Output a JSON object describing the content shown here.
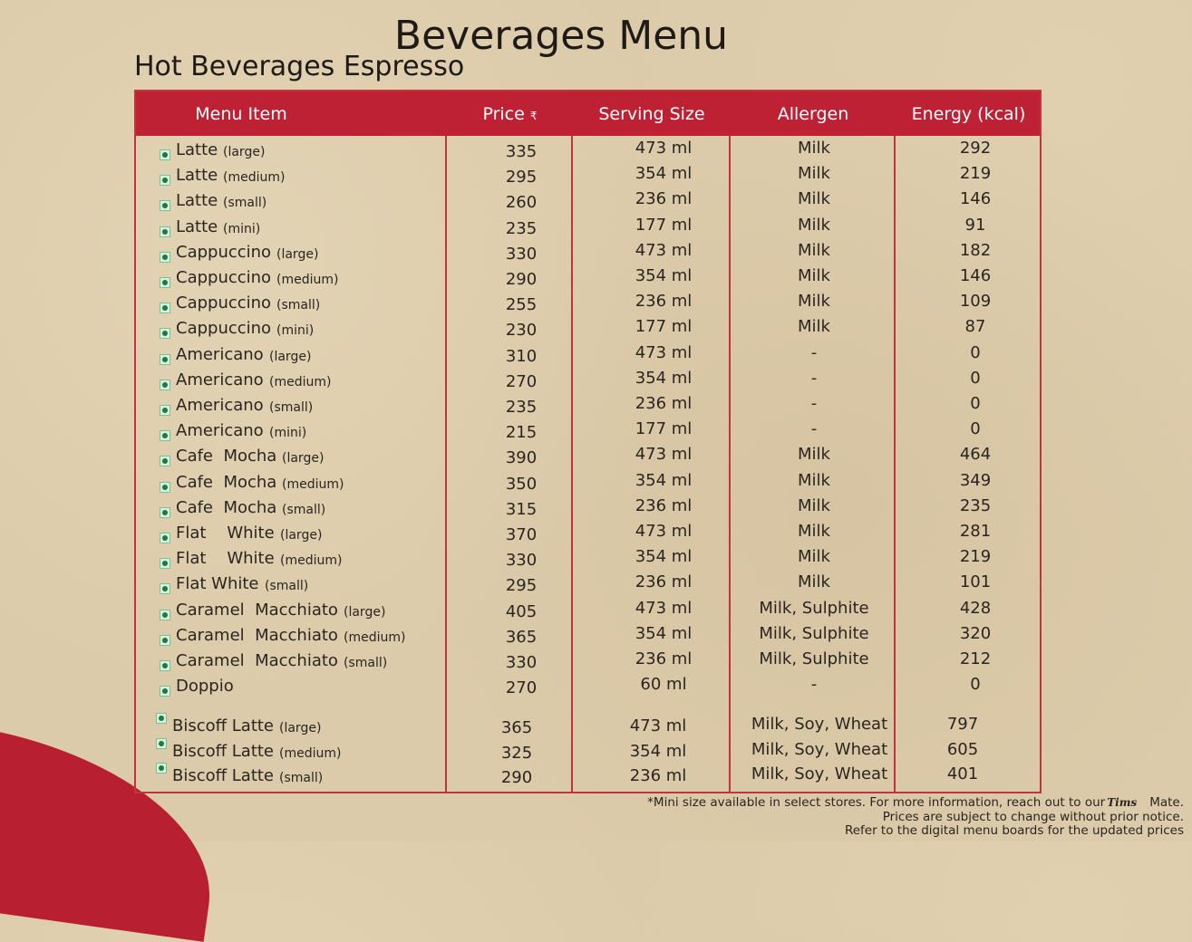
{
  "title": "Beverages Menu",
  "subtitle": "Hot Beverages Espresso",
  "columns": {
    "item": "Menu Item",
    "price": "Price",
    "currency": "₹",
    "serving": "Serving Size",
    "allergen": "Allergen",
    "energy": "Energy (kcal)"
  },
  "veg_mark_color": "#1b7a3c",
  "header_color": "#bd2133",
  "rows": [
    {
      "name": "Latte",
      "size": "(large)",
      "price": "335",
      "serving": "473 ml",
      "allergen": "Milk",
      "energy": "292"
    },
    {
      "name": "Latte",
      "size": "(medium)",
      "price": "295",
      "serving": "354 ml",
      "allergen": "Milk",
      "energy": "219"
    },
    {
      "name": "Latte",
      "size": "(small)",
      "price": "260",
      "serving": "236 ml",
      "allergen": "Milk",
      "energy": "146"
    },
    {
      "name": "Latte",
      "size": "(mini)",
      "price": "235",
      "serving": "177 ml",
      "allergen": "Milk",
      "energy": "91"
    },
    {
      "name": "Cappuccino",
      "size": "(large)",
      "price": "330",
      "serving": "473 ml",
      "allergen": "Milk",
      "energy": "182"
    },
    {
      "name": "Cappuccino",
      "size": "(medium)",
      "price": "290",
      "serving": "354 ml",
      "allergen": "Milk",
      "energy": "146"
    },
    {
      "name": "Cappuccino",
      "size": "(small)",
      "price": "255",
      "serving": "236 ml",
      "allergen": "Milk",
      "energy": "109"
    },
    {
      "name": "Cappuccino",
      "size": "(mini)",
      "price": "230",
      "serving": "177 ml",
      "allergen": "Milk",
      "energy": "87"
    },
    {
      "name": "Americano",
      "size": "(large)",
      "price": "310",
      "serving": "473 ml",
      "allergen": "-",
      "energy": "0"
    },
    {
      "name": "Americano",
      "size": "(medium)",
      "price": "270",
      "serving": "354 ml",
      "allergen": "-",
      "energy": "0"
    },
    {
      "name": "Americano",
      "size": "(small)",
      "price": "235",
      "serving": "236 ml",
      "allergen": "-",
      "energy": "0"
    },
    {
      "name": "Americano",
      "size": "(mini)",
      "price": "215",
      "serving": "177 ml",
      "allergen": "-",
      "energy": "0"
    },
    {
      "name": "Cafe  Mocha",
      "size": "(large)",
      "price": "390",
      "serving": "473 ml",
      "allergen": "Milk",
      "energy": "464"
    },
    {
      "name": "Cafe  Mocha",
      "size": "(medium)",
      "price": "350",
      "serving": "354 ml",
      "allergen": "Milk",
      "energy": "349"
    },
    {
      "name": "Cafe  Mocha",
      "size": "(small)",
      "price": "315",
      "serving": "236 ml",
      "allergen": "Milk",
      "energy": "235"
    },
    {
      "name": "Flat    White",
      "size": "(large)",
      "price": "370",
      "serving": "473 ml",
      "allergen": "Milk",
      "energy": "281"
    },
    {
      "name": "Flat    White",
      "size": "(medium)",
      "price": "330",
      "serving": "354 ml",
      "allergen": "Milk",
      "energy": "219"
    },
    {
      "name": "Flat White",
      "size": "(small)",
      "price": "295",
      "serving": "236 ml",
      "allergen": "Milk",
      "energy": "101"
    },
    {
      "name": "Caramel  Macchiato",
      "size": "(large)",
      "price": "405",
      "serving": "473 ml",
      "allergen": "Milk, Sulphite",
      "energy": "428"
    },
    {
      "name": "Caramel  Macchiato",
      "size": "(medium)",
      "price": "365",
      "serving": "354 ml",
      "allergen": "Milk, Sulphite",
      "energy": "320"
    },
    {
      "name": "Caramel  Macchiato",
      "size": "(small)",
      "price": "330",
      "serving": "236 ml",
      "allergen": "Milk, Sulphite",
      "energy": "212"
    },
    {
      "name": "Doppio",
      "size": "",
      "price": "270",
      "serving": "60 ml",
      "allergen": "-",
      "energy": "0"
    },
    {
      "name": "Biscoff Latte",
      "size": "(large)",
      "price": "365",
      "serving": "473 ml",
      "allergen": "Milk, Soy, Wheat",
      "energy": "797"
    },
    {
      "name": "Biscoff Latte",
      "size": "(medium)",
      "price": "325",
      "serving": "354 ml",
      "allergen": "Milk, Soy, Wheat",
      "energy": "605"
    },
    {
      "name": "Biscoff Latte",
      "size": "(small)",
      "price": "290",
      "serving": "236 ml",
      "allergen": "Milk, Soy, Wheat",
      "energy": "401"
    }
  ],
  "footer": {
    "line1_pre": "*Mini size available in select stores. For more information, reach out to our",
    "brand": "Tims",
    "line1_post": "Mate.",
    "line2": "Prices are subject to change without prior notice.",
    "line3": "Refer to the digital menu boards for the updated prices"
  }
}
